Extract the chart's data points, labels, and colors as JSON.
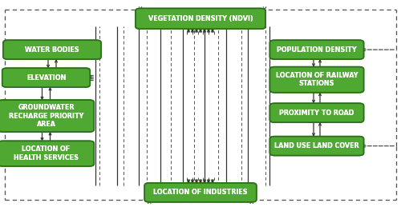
{
  "bg_color": "#ffffff",
  "box_fill": "#4ea832",
  "box_edge": "#2d6e1a",
  "box_text_color": "#ffffff",
  "font_size": 5.8,
  "solid_color": "#333333",
  "dashed_color": "#555555",
  "boxes": {
    "VEG": [
      0.5,
      0.91,
      0.3,
      0.075
    ],
    "WB": [
      0.13,
      0.76,
      0.22,
      0.068
    ],
    "PD": [
      0.79,
      0.76,
      0.21,
      0.068
    ],
    "EL": [
      0.115,
      0.625,
      0.195,
      0.068
    ],
    "LRS": [
      0.79,
      0.615,
      0.21,
      0.1
    ],
    "GW": [
      0.115,
      0.44,
      0.215,
      0.13
    ],
    "PTR": [
      0.79,
      0.455,
      0.21,
      0.068
    ],
    "LHS": [
      0.115,
      0.258,
      0.215,
      0.098
    ],
    "LULC": [
      0.79,
      0.295,
      0.21,
      0.068
    ],
    "LOI": [
      0.5,
      0.07,
      0.255,
      0.068
    ]
  },
  "labels": {
    "VEG": "VEGETATION DENSITY (NDVI)",
    "WB": "WATER BODIES",
    "PD": "POPULATION DENSITY",
    "EL": "ELEVATION",
    "LRS": "LOCATION OF RAILWAY\nSTATIONS",
    "GW": "GROUNDWATER\nRECHARGE PRIORITY\nAREA",
    "PTR": "PROXIMITY TO ROAD",
    "LHS": "LOCATION OF\nHEALTH SERVICES",
    "LULC": "LAND USE LAND COVER",
    "LOI": "LOCATION OF INDUSTRIES"
  }
}
